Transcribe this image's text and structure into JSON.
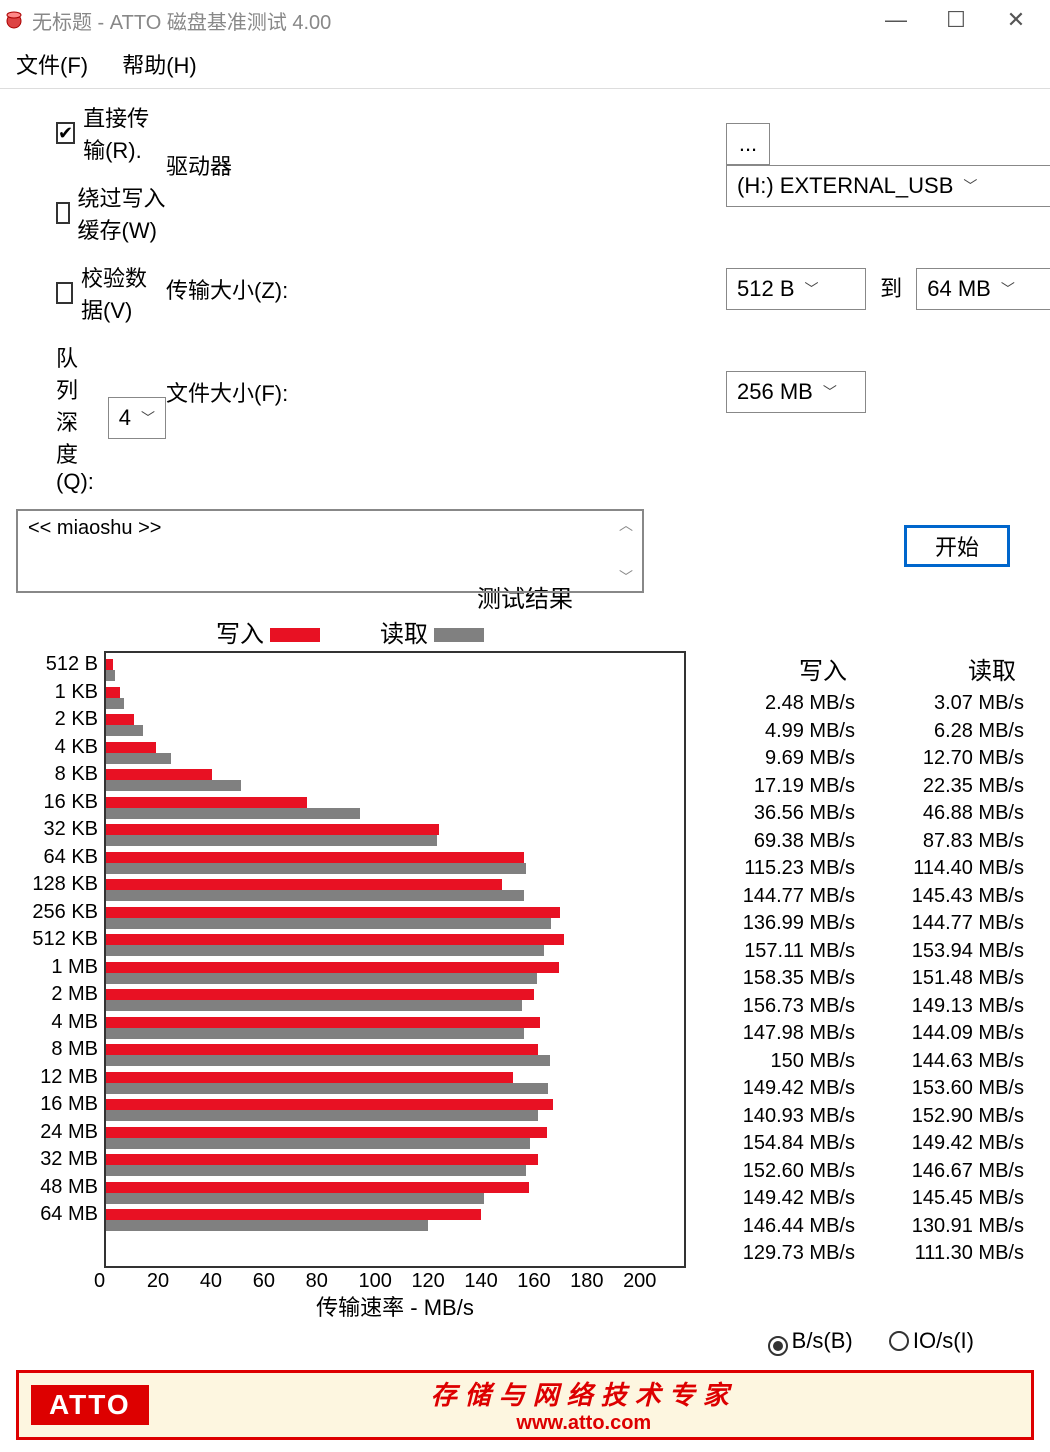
{
  "window": {
    "title": "无标题 - ATTO 磁盘基准测试 4.00",
    "min": "—",
    "max": "☐",
    "close": "✕"
  },
  "menu": {
    "file": "文件(F)",
    "help": "帮助(H)"
  },
  "labels": {
    "drive": "驱动器",
    "transfer_size": "传输大小(Z):",
    "to": "到",
    "file_size": "文件大小(F):",
    "browse": "..."
  },
  "values": {
    "drive": "(H:) EXTERNAL_USB",
    "ts_from": "512 B",
    "ts_to": "64 MB",
    "file_size": "256 MB",
    "queue_depth": "4",
    "description": "<< miaoshu >>"
  },
  "options": {
    "direct": {
      "label": "直接传输(R).",
      "checked": true
    },
    "bypass": {
      "label": "绕过写入缓存(W)",
      "checked": false
    },
    "verify": {
      "label": "校验数据(V)",
      "checked": false
    },
    "queue_label": "队列深度(Q):",
    "start": "开始"
  },
  "chart": {
    "title": "测试结果",
    "legend_write": "写入",
    "legend_read": "读取",
    "write_color": "#e81123",
    "read_color": "#808080",
    "xmax": 200,
    "xticks": [
      "0",
      "20",
      "40",
      "60",
      "80",
      "100",
      "120",
      "140",
      "160",
      "180",
      "200"
    ],
    "xlabel": "传输速率 - MB/s",
    "rows": [
      {
        "label": "512 B",
        "write": 2.48,
        "read": 3.07,
        "w": "2.48 MB/s",
        "r": "3.07 MB/s"
      },
      {
        "label": "1 KB",
        "write": 4.99,
        "read": 6.28,
        "w": "4.99 MB/s",
        "r": "6.28 MB/s"
      },
      {
        "label": "2 KB",
        "write": 9.69,
        "read": 12.7,
        "w": "9.69 MB/s",
        "r": "12.70 MB/s"
      },
      {
        "label": "4 KB",
        "write": 17.19,
        "read": 22.35,
        "w": "17.19 MB/s",
        "r": "22.35 MB/s"
      },
      {
        "label": "8 KB",
        "write": 36.56,
        "read": 46.88,
        "w": "36.56 MB/s",
        "r": "46.88 MB/s"
      },
      {
        "label": "16 KB",
        "write": 69.38,
        "read": 87.83,
        "w": "69.38 MB/s",
        "r": "87.83 MB/s"
      },
      {
        "label": "32 KB",
        "write": 115.23,
        "read": 114.4,
        "w": "115.23 MB/s",
        "r": "114.40 MB/s"
      },
      {
        "label": "64 KB",
        "write": 144.77,
        "read": 145.43,
        "w": "144.77 MB/s",
        "r": "145.43 MB/s"
      },
      {
        "label": "128 KB",
        "write": 136.99,
        "read": 144.77,
        "w": "136.99 MB/s",
        "r": "144.77 MB/s"
      },
      {
        "label": "256 KB",
        "write": 157.11,
        "read": 153.94,
        "w": "157.11 MB/s",
        "r": "153.94 MB/s"
      },
      {
        "label": "512 KB",
        "write": 158.35,
        "read": 151.48,
        "w": "158.35 MB/s",
        "r": "151.48 MB/s"
      },
      {
        "label": "1 MB",
        "write": 156.73,
        "read": 149.13,
        "w": "156.73 MB/s",
        "r": "149.13 MB/s"
      },
      {
        "label": "2 MB",
        "write": 147.98,
        "read": 144.09,
        "w": "147.98 MB/s",
        "r": "144.09 MB/s"
      },
      {
        "label": "4 MB",
        "write": 150,
        "read": 144.63,
        "w": "150 MB/s",
        "r": "144.63 MB/s"
      },
      {
        "label": "8 MB",
        "write": 149.42,
        "read": 153.6,
        "w": "149.42 MB/s",
        "r": "153.60 MB/s"
      },
      {
        "label": "12 MB",
        "write": 140.93,
        "read": 152.9,
        "w": "140.93 MB/s",
        "r": "152.90 MB/s"
      },
      {
        "label": "16 MB",
        "write": 154.84,
        "read": 149.42,
        "w": "154.84 MB/s",
        "r": "149.42 MB/s"
      },
      {
        "label": "24 MB",
        "write": 152.6,
        "read": 146.67,
        "w": "152.60 MB/s",
        "r": "146.67 MB/s"
      },
      {
        "label": "32 MB",
        "write": 149.42,
        "read": 145.45,
        "w": "149.42 MB/s",
        "r": "145.45 MB/s"
      },
      {
        "label": "48 MB",
        "write": 146.44,
        "read": 130.91,
        "w": "146.44 MB/s",
        "r": "130.91 MB/s"
      },
      {
        "label": "64 MB",
        "write": 129.73,
        "read": 111.3,
        "w": "129.73 MB/s",
        "r": "111.30 MB/s"
      }
    ],
    "col_write": "写入",
    "col_read": "读取"
  },
  "radio": {
    "bs": "B/s(B)",
    "ios": "IO/s(I)",
    "selected": "bs"
  },
  "footer": {
    "logo": "ATTO",
    "slogan": "存储与网络技术专家",
    "url": "www.atto.com"
  }
}
